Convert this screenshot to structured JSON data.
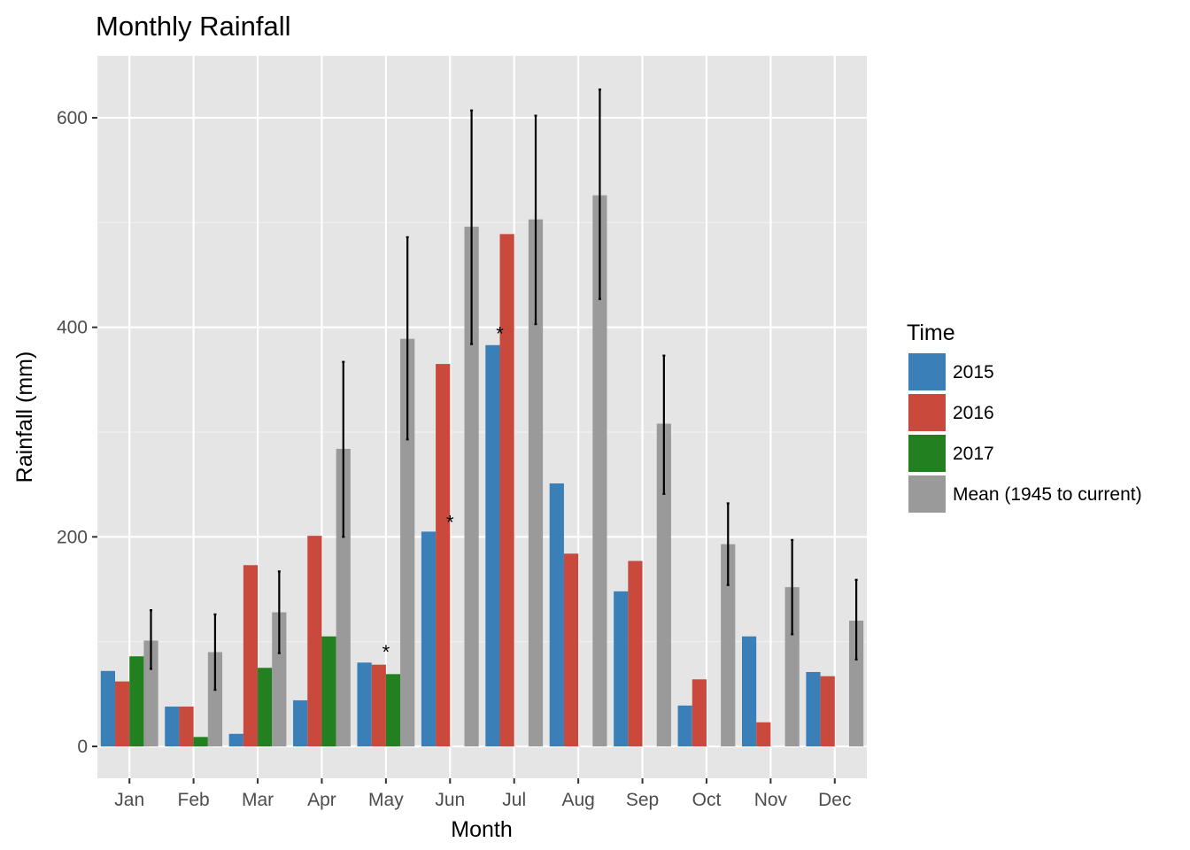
{
  "chart_data": {
    "type": "bar",
    "title": "Monthly Rainfall",
    "xlabel": "Month",
    "ylabel": "Rainfall (mm)",
    "ylim": [
      -30,
      660
    ],
    "yticks": [
      0,
      200,
      400,
      600
    ],
    "grid": true,
    "legend_position": "right",
    "legend_title": "Time",
    "categories": [
      "Jan",
      "Feb",
      "Mar",
      "Apr",
      "May",
      "Jun",
      "Jul",
      "Aug",
      "Sep",
      "Oct",
      "Nov",
      "Dec"
    ],
    "series": [
      {
        "name": "2015",
        "color": "#3a7fb8",
        "values": [
          72,
          38,
          12,
          44,
          80,
          205,
          383,
          251,
          148,
          39,
          105,
          71
        ]
      },
      {
        "name": "2016",
        "color": "#c94a3c",
        "values": [
          62,
          38,
          173,
          201,
          78,
          365,
          489,
          184,
          177,
          64,
          23,
          67
        ]
      },
      {
        "name": "2017",
        "color": "#228020",
        "values": [
          86,
          9,
          75,
          105,
          69,
          null,
          null,
          null,
          null,
          null,
          null,
          null
        ]
      },
      {
        "name": "Mean (1945 to current)",
        "color": "#9a9a9a",
        "values": [
          101,
          90,
          128,
          284,
          389,
          496,
          503,
          526,
          308,
          193,
          152,
          120
        ],
        "error_low": [
          74,
          54,
          89,
          200,
          293,
          384,
          403,
          427,
          241,
          154,
          107,
          83
        ],
        "error_high": [
          130,
          126,
          167,
          367,
          486,
          607,
          602,
          627,
          373,
          232,
          197,
          159
        ]
      }
    ],
    "annotations": [
      {
        "text": "*",
        "category": "May",
        "series": "2016",
        "y": 92
      },
      {
        "text": "*",
        "category": "Jun",
        "series": "2016",
        "y": 216
      },
      {
        "text": "*",
        "category": "Jul",
        "series": "2015",
        "y": 396
      }
    ]
  }
}
